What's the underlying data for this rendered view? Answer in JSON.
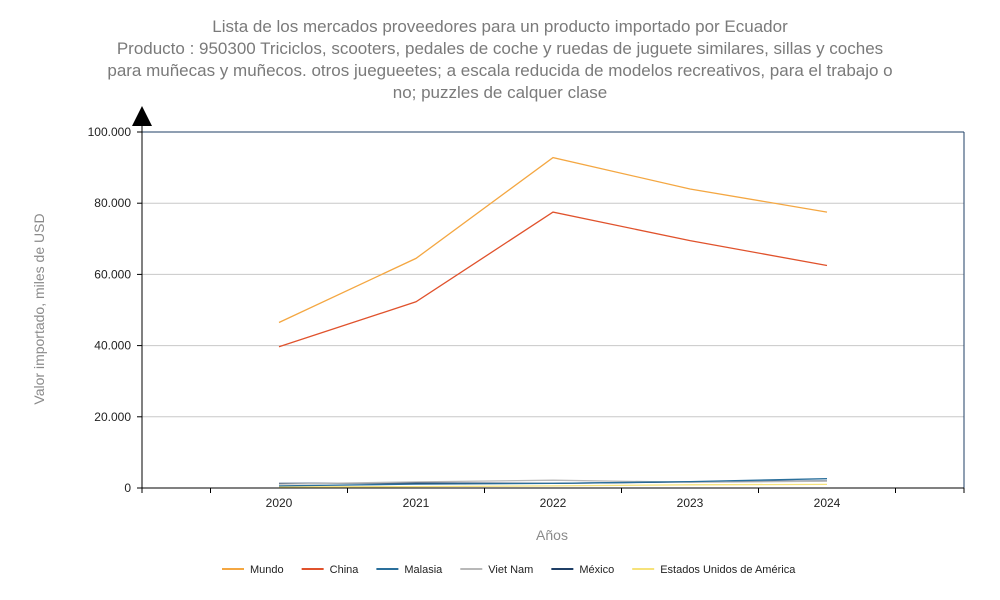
{
  "chart_data": {
    "type": "line",
    "title_lines": [
      "Lista de los mercados proveedores para un producto importado por Ecuador",
      "Producto : 950300 Triciclos, scooters, pedales de coche y ruedas de juguete similares, sillas y coches",
      "para muñecas y muñecos. otros juegueetes; a escala reducida de modelos recreativos, para el trabajo o",
      "no; puzzles de calquer clase"
    ],
    "xlabel": "Años",
    "ylabel": "Valor importado, miles de USD",
    "x": [
      "2020",
      "2021",
      "2022",
      "2023",
      "2024"
    ],
    "ylim": [
      0,
      100000
    ],
    "y_ticks": [
      0,
      20000,
      40000,
      60000,
      80000,
      100000
    ],
    "y_tick_labels": [
      "0",
      "20.000",
      "40.000",
      "60.000",
      "80.000",
      "100.000"
    ],
    "grid": true,
    "legend_position": "bottom",
    "series": [
      {
        "name": "Mundo",
        "color": "#f4a742",
        "values": [
          46500,
          64500,
          92800,
          84000,
          77500
        ]
      },
      {
        "name": "China",
        "color": "#e0522c",
        "values": [
          39700,
          52300,
          77500,
          69500,
          62500
        ]
      },
      {
        "name": "Malasia",
        "color": "#2a6f9b",
        "values": [
          600,
          1100,
          1300,
          1800,
          2600
        ]
      },
      {
        "name": "Viet Nam",
        "color": "#b8b8b8",
        "values": [
          1100,
          1700,
          2200,
          1600,
          1900
        ]
      },
      {
        "name": "México",
        "color": "#1f3f66",
        "values": [
          1300,
          1400,
          1300,
          1700,
          2000
        ]
      },
      {
        "name": "Estados Unidos de América",
        "color": "#f6e27a",
        "values": [
          300,
          400,
          600,
          900,
          1000
        ]
      }
    ]
  }
}
